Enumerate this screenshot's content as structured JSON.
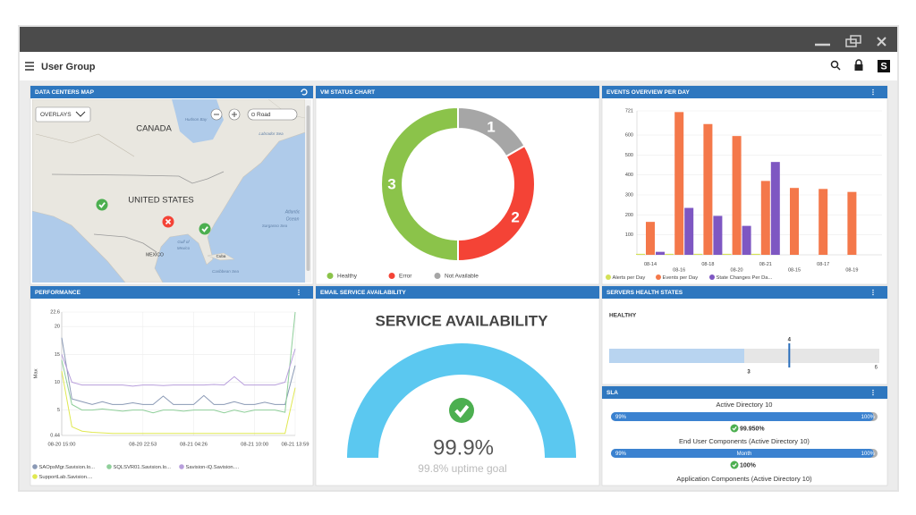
{
  "header": {
    "title": "User Group",
    "logo": "S"
  },
  "map": {
    "title": "DATA CENTERS MAP",
    "overlays": "OVERLAYS",
    "search": "Road",
    "labels": [
      "CANADA",
      "UNITED STATES",
      "MEXICO",
      "Hudson Bay",
      "Labrador Sea",
      "Sargasso Sea",
      "Atlantic",
      "Ocean",
      "Gulf of",
      "Mexico",
      "Cuba",
      "Caribbean Sea"
    ]
  },
  "chart_data": [
    {
      "type": "donut",
      "title": "VM STATUS CHART",
      "categories": [
        "Healthy",
        "Error",
        "Not Available"
      ],
      "values": [
        3,
        2,
        1
      ],
      "colors": [
        "#8bc34a",
        "#f44336",
        "#a6a6a6"
      ]
    },
    {
      "type": "bar",
      "title": "EVENTS OVERVIEW PER DAY",
      "categories": [
        "08-14",
        "08-16",
        "08-18",
        "08-20",
        "08-21",
        "08-15",
        "08-17",
        "08-19"
      ],
      "series": [
        {
          "name": "Alerts per Day",
          "color": "#d4e157",
          "values": [
            5,
            5,
            5,
            5,
            5,
            null,
            null,
            null
          ]
        },
        {
          "name": "Events per Day",
          "color": "#f4784a",
          "values": [
            165,
            715,
            655,
            595,
            370,
            335,
            330,
            315
          ]
        },
        {
          "name": "State Changes Per Da...",
          "color": "#7e57c2",
          "values": [
            15,
            235,
            195,
            145,
            465,
            null,
            null,
            null
          ]
        }
      ],
      "ylim": [
        0,
        721
      ],
      "yticks": [
        100,
        200,
        300,
        400,
        500,
        600,
        721
      ],
      "grid": true
    },
    {
      "type": "line",
      "title": "PERFORMANCE",
      "y_label": "Max",
      "categories": [
        "08-20 15:00",
        null,
        null,
        null,
        null,
        null,
        null,
        null,
        "08-20 22:53",
        null,
        null,
        null,
        null,
        "08-21 04:26",
        null,
        null,
        null,
        null,
        null,
        "08-21 10:00",
        null,
        null,
        null,
        "08-21 13:59"
      ],
      "series": [
        {
          "name": "SAOpsMgr.Savision.lo...",
          "color": "#8a99b5",
          "values": [
            18,
            7,
            6.5,
            6,
            6.5,
            6,
            6,
            6.3,
            6,
            6,
            7.5,
            6,
            6,
            6,
            7.6,
            6,
            6,
            6.5,
            6,
            6,
            6.4,
            6,
            6,
            13
          ]
        },
        {
          "name": "SQLSVR01.Savision.lo...",
          "color": "#8fcf9a",
          "values": [
            14,
            6,
            5,
            5,
            5.2,
            5,
            4.8,
            5,
            5,
            4.5,
            5,
            5,
            4.8,
            5,
            5,
            5,
            4.5,
            5,
            4.6,
            5,
            5,
            5,
            4.6,
            22.6
          ]
        },
        {
          "name": "Savision-iQ.Savision....",
          "color": "#b89fdc",
          "values": [
            15,
            10,
            9.5,
            9.5,
            9.5,
            9.5,
            9.5,
            9.3,
            9.5,
            9.5,
            9.4,
            9.5,
            9.5,
            9.5,
            9.5,
            9.6,
            9.5,
            11,
            9.5,
            9.5,
            9.5,
            9.5,
            10,
            16
          ]
        },
        {
          "name": "SupportLab.Savision....",
          "color": "#e0e850",
          "values": [
            12,
            2,
            1.2,
            1,
            0.9,
            0.8,
            0.8,
            0.8,
            0.8,
            0.8,
            0.8,
            0.8,
            0.8,
            0.8,
            0.8,
            0.8,
            0.8,
            0.8,
            0.8,
            0.8,
            0.8,
            0.8,
            0.8,
            9
          ]
        }
      ],
      "ylim": [
        0.44,
        22.6
      ],
      "yticks": [
        0.44,
        5,
        10,
        15,
        20,
        22.6
      ],
      "grid": true
    },
    {
      "type": "bullet",
      "title": "SERVERS HEALTH STATES",
      "label": "HEALTHY",
      "value": 3,
      "target": 4,
      "color": "#b8d4f0",
      "target_color": "#2a6ebb",
      "xlim": [
        0,
        6
      ],
      "xticks": [
        6
      ]
    }
  ],
  "email": {
    "title": "EMAIL SERVICE AVAILABILITY",
    "heading": "SERVICE AVAILABILITY",
    "value": "99.9%",
    "goal": "99.8% uptime goal"
  },
  "sla": {
    "title": "SLA",
    "items": [
      {
        "name": "Active Directory 10",
        "min": "99%",
        "max": "100%",
        "result": "99.950%"
      },
      {
        "name": "End User Components (Active Directory 10)",
        "min": "99%",
        "period": "Month",
        "max": "100%",
        "result": "100%"
      },
      {
        "name": "Application Components (Active Directory 10)"
      }
    ]
  }
}
